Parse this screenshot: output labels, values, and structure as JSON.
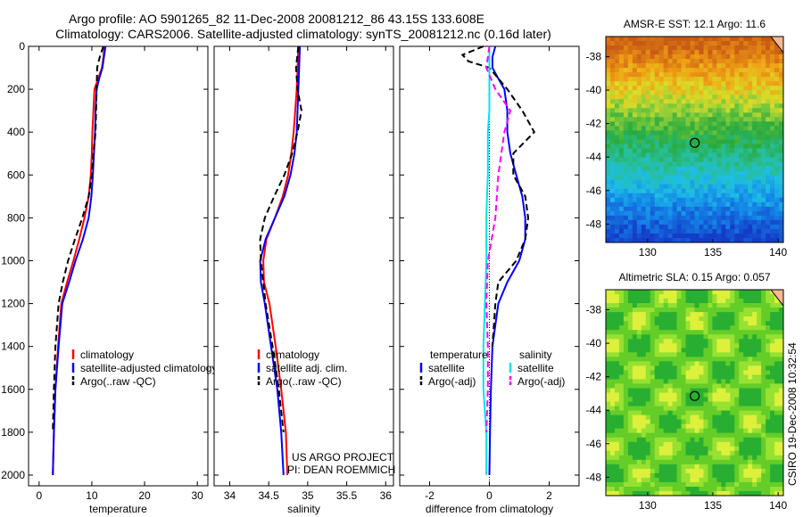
{
  "title_line1": "Argo profile: AO 5901265_82 11-Dec-2008 20081212_86 43.15S 133.608E",
  "title_line2": "Climatology: CARS2006. Satellite-adjusted climatology: synTS_20081212.nc (0.16d later)",
  "side_label": "CSIRO 19-Dec-2008 10:32:54",
  "project_line1": "US ARGO PROJECT",
  "project_line2": "PI: DEAN ROEMMICH",
  "colors": {
    "climatology": "#ff0000",
    "satellite": "#0000ff",
    "argo": "#000000",
    "salinity_satellite": "#00e5ee",
    "salinity_argo": "#ff00ff"
  },
  "chart_data": [
    {
      "type": "line",
      "title": "",
      "xlabel": "temperature",
      "ylabel": "",
      "xlim": [
        -2,
        32
      ],
      "ylim": [
        2050,
        0
      ],
      "xticks": [
        0,
        10,
        20,
        30
      ],
      "yticks": [
        0,
        200,
        400,
        600,
        800,
        1000,
        1200,
        1400,
        1600,
        1800,
        2000
      ],
      "legend": [
        "climatology",
        "satellite-adjusted climatology",
        "Argo(..raw -QC)"
      ],
      "series": [
        {
          "name": "climatology",
          "style": "solid",
          "color": "#ff0000",
          "x": [
            12.4,
            12.2,
            11.9,
            11.2,
            10.5,
            10.3,
            10.1,
            10.0,
            9.8,
            9.4,
            8.6,
            7.6,
            6.5,
            5.3,
            4.2,
            3.6,
            3.1,
            2.8,
            2.6
          ],
          "y": [
            0,
            50,
            100,
            150,
            200,
            300,
            400,
            500,
            600,
            700,
            800,
            900,
            1000,
            1100,
            1200,
            1400,
            1600,
            1800,
            2000
          ]
        },
        {
          "name": "satellite-adjusted climatology",
          "style": "solid",
          "color": "#0000ff",
          "x": [
            12.6,
            12.3,
            12.0,
            11.4,
            10.9,
            10.7,
            10.6,
            10.4,
            10.2,
            9.9,
            9.4,
            8.3,
            6.9,
            5.7,
            4.4,
            3.7,
            3.1,
            2.8,
            2.6
          ],
          "y": [
            0,
            50,
            100,
            150,
            200,
            300,
            400,
            500,
            600,
            700,
            800,
            900,
            1000,
            1100,
            1200,
            1400,
            1600,
            1800,
            2000
          ]
        },
        {
          "name": "Argo(..raw -QC)",
          "style": "dash",
          "color": "#000000",
          "x": [
            12.2,
            11.5,
            11.0,
            10.9,
            10.8,
            10.7,
            10.3,
            10.0,
            9.4,
            8.2,
            6.8,
            5.5,
            4.5,
            3.7,
            3.1,
            2.8,
            2.6
          ],
          "y": [
            0,
            50,
            100,
            200,
            300,
            400,
            500,
            600,
            700,
            800,
            900,
            1000,
            1100,
            1200,
            1400,
            1600,
            1800
          ]
        }
      ]
    },
    {
      "type": "line",
      "title": "",
      "xlabel": "salinity",
      "ylabel": "",
      "xlim": [
        33.8,
        36.1
      ],
      "xticks": [
        34,
        34.5,
        35,
        35.5,
        36
      ],
      "legend": [
        "climatology",
        "satellite adj. clim.",
        "Argo(..raw -QC)"
      ],
      "series": [
        {
          "name": "climatology",
          "style": "solid",
          "color": "#ff0000",
          "x": [
            34.88,
            34.87,
            34.86,
            34.84,
            34.82,
            34.79,
            34.75,
            34.68,
            34.58,
            34.47,
            34.43,
            34.44,
            34.51,
            34.59,
            34.66,
            34.72,
            34.74
          ],
          "y": [
            0,
            100,
            200,
            300,
            400,
            500,
            600,
            700,
            800,
            900,
            1000,
            1100,
            1200,
            1400,
            1600,
            1800,
            2000
          ]
        },
        {
          "name": "satellite adj. clim.",
          "style": "solid",
          "color": "#0000ff",
          "x": [
            34.9,
            34.89,
            34.88,
            34.87,
            34.86,
            34.83,
            34.78,
            34.7,
            34.58,
            34.46,
            34.39,
            34.4,
            34.45,
            34.53,
            34.61,
            34.66,
            34.69
          ],
          "y": [
            0,
            100,
            200,
            300,
            400,
            500,
            600,
            700,
            800,
            900,
            1000,
            1100,
            1200,
            1400,
            1600,
            1800,
            2000
          ]
        },
        {
          "name": "Argo(..raw -QC)",
          "style": "dash",
          "color": "#000000",
          "x": [
            34.88,
            34.85,
            34.87,
            34.92,
            34.87,
            34.8,
            34.7,
            34.57,
            34.45,
            34.39,
            34.4,
            34.46,
            34.55,
            34.63,
            34.69
          ],
          "y": [
            0,
            100,
            200,
            300,
            400,
            500,
            600,
            700,
            800,
            900,
            1000,
            1200,
            1400,
            1600,
            1800
          ]
        }
      ]
    },
    {
      "type": "line",
      "title": "",
      "xlabel": "difference from climatology",
      "ylabel": "",
      "xlim": [
        -3,
        3
      ],
      "xticks": [
        -2,
        0,
        2
      ],
      "legend": [
        "temperature satellite",
        "temperature Argo(-adj)",
        "salinity satellite",
        "salinity Argo(-adj)"
      ],
      "legend_headers": [
        "temperature",
        "salinity"
      ],
      "series": [
        {
          "name": "satellite",
          "group": "temperature",
          "style": "solid",
          "color": "#0000ff",
          "x": [
            0.2,
            0.1,
            0.1,
            0.3,
            0.5,
            0.6,
            0.6,
            0.7,
            0.9,
            1.1,
            1.2,
            1.2,
            1.0,
            0.6,
            0.3,
            0.1,
            0.05,
            0.02,
            0.0
          ],
          "y": [
            0,
            50,
            100,
            150,
            200,
            300,
            400,
            500,
            600,
            700,
            800,
            900,
            1000,
            1100,
            1200,
            1400,
            1600,
            1800,
            2000
          ]
        },
        {
          "name": "Argo(-adj)",
          "group": "temperature",
          "style": "dash",
          "color": "#000000",
          "x": [
            -0.2,
            -0.9,
            -0.7,
            0.0,
            0.6,
            1.1,
            1.5,
            0.8,
            0.8,
            1.2,
            1.3,
            1.2,
            0.9,
            0.3,
            0.2,
            0.1
          ],
          "y": [
            0,
            40,
            70,
            100,
            200,
            300,
            400,
            500,
            600,
            700,
            800,
            900,
            1000,
            1100,
            1200,
            1400
          ]
        },
        {
          "name": "satellite",
          "group": "salinity",
          "style": "solid",
          "color": "#00e5ee",
          "x": [
            0.0,
            0.0,
            0.0,
            0.0,
            -0.05,
            -0.05,
            -0.05,
            -0.08,
            -0.1,
            -0.1,
            -0.1,
            -0.15,
            -0.2,
            -0.2,
            -0.1,
            -0.1
          ],
          "y": [
            0,
            100,
            200,
            300,
            400,
            500,
            600,
            700,
            800,
            900,
            1000,
            1200,
            1400,
            1600,
            1800,
            2000
          ]
        },
        {
          "name": "Argo(-adj)",
          "group": "salinity",
          "style": "dash",
          "color": "#ff00ff",
          "x": [
            0.0,
            -0.1,
            0.2,
            0.7,
            0.5,
            0.3,
            0.2,
            -0.05,
            -0.1,
            -0.05,
            -0.05,
            -0.1
          ],
          "y": [
            0,
            100,
            200,
            300,
            400,
            600,
            800,
            1000,
            1200,
            1400,
            1600,
            1800
          ]
        }
      ]
    },
    {
      "type": "heatmap",
      "title": "AMSR-E SST: 12.1 Argo: 11.6",
      "xticks": [
        130,
        135,
        140
      ],
      "yticks": [
        -38,
        -40,
        -42,
        -44,
        -46,
        -48
      ],
      "xlim": [
        126.8,
        140.4
      ],
      "ylim": [
        -49.1,
        -36.8
      ],
      "marker": {
        "lon": 133.608,
        "lat": -43.15
      }
    },
    {
      "type": "heatmap",
      "title": "Altimetric SLA: 0.15 Argo: 0.057",
      "xticks": [
        130,
        135,
        140
      ],
      "yticks": [
        -38,
        -40,
        -42,
        -44,
        -46,
        -48
      ],
      "xlim": [
        126.8,
        140.4
      ],
      "ylim": [
        -49.1,
        -36.8
      ],
      "marker": {
        "lon": 133.608,
        "lat": -43.15
      }
    }
  ]
}
